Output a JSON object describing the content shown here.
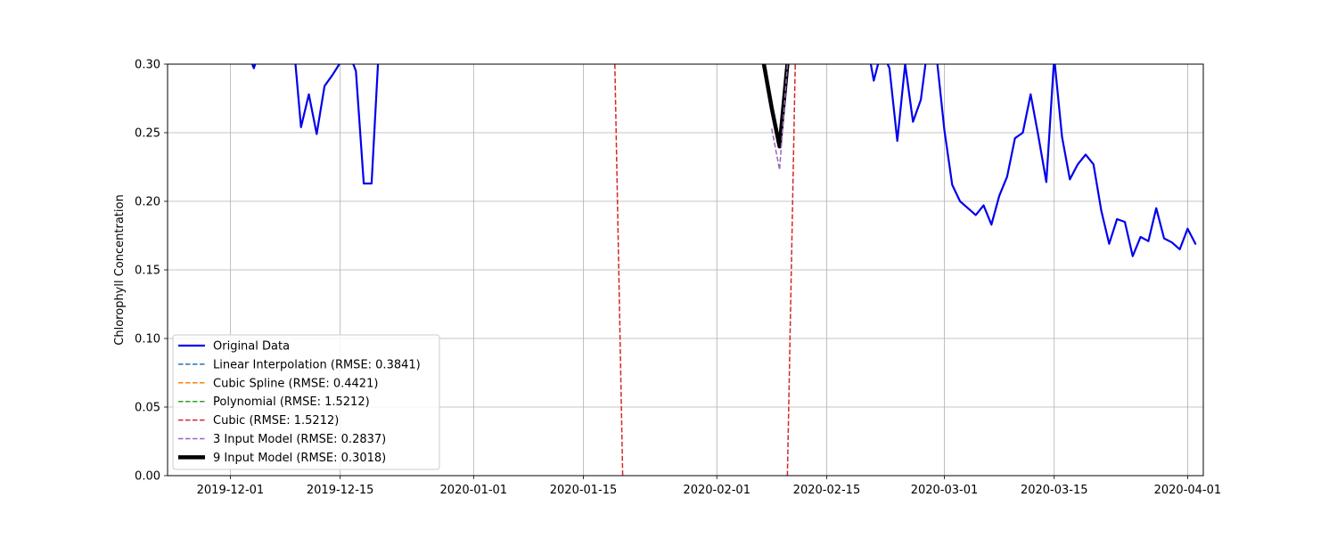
{
  "chart_data": {
    "type": "line",
    "title": "",
    "xlabel": "",
    "ylabel": "Chlorophyll Concentration",
    "x_is_date": true,
    "xlim": [
      "2019-11-23",
      "2020-04-03"
    ],
    "ylim": [
      0.0,
      0.3
    ],
    "x_ticks": [
      "2019-12-01",
      "2019-12-15",
      "2020-01-01",
      "2020-01-15",
      "2020-02-01",
      "2020-02-15",
      "2020-03-01",
      "2020-03-15",
      "2020-04-01"
    ],
    "y_ticks": [
      0.0,
      0.05,
      0.1,
      0.15,
      0.2,
      0.25,
      0.3
    ],
    "y_tick_labels": [
      "0.00",
      "0.05",
      "0.10",
      "0.15",
      "0.20",
      "0.25",
      "0.30"
    ],
    "grid": true,
    "legend_position": "lower-left",
    "series": [
      {
        "name": "Original Data",
        "color": "#0000ee",
        "style": "solid",
        "width": 2.2,
        "segments": [
          [
            [
              "2019-12-03",
              0.312
            ],
            [
              "2019-12-04",
              0.297
            ],
            [
              "2019-12-05",
              0.315
            ]
          ],
          [
            [
              "2019-12-09",
              0.32
            ],
            [
              "2019-12-10",
              0.254
            ],
            [
              "2019-12-11",
              0.278
            ],
            [
              "2019-12-12",
              0.249
            ],
            [
              "2019-12-13",
              0.284
            ],
            [
              "2019-12-14",
              0.292
            ],
            [
              "2019-12-15",
              0.301
            ],
            [
              "2019-12-16",
              0.31
            ],
            [
              "2019-12-17",
              0.295
            ],
            [
              "2019-12-18",
              0.213
            ],
            [
              "2019-12-19",
              0.213
            ],
            [
              "2019-12-20",
              0.32
            ]
          ],
          [
            [
              "2020-02-20",
              0.32
            ],
            [
              "2020-02-21",
              0.288
            ],
            [
              "2020-02-22",
              0.31
            ],
            [
              "2020-02-23",
              0.297
            ],
            [
              "2020-02-24",
              0.244
            ],
            [
              "2020-02-25",
              0.3
            ],
            [
              "2020-02-26",
              0.258
            ],
            [
              "2020-02-27",
              0.274
            ],
            [
              "2020-02-28",
              0.318
            ],
            [
              "2020-02-29",
              0.306
            ],
            [
              "2020-03-01",
              0.252
            ],
            [
              "2020-03-02",
              0.212
            ],
            [
              "2020-03-03",
              0.2
            ],
            [
              "2020-03-04",
              0.195
            ],
            [
              "2020-03-05",
              0.19
            ],
            [
              "2020-03-06",
              0.197
            ],
            [
              "2020-03-07",
              0.183
            ],
            [
              "2020-03-08",
              0.204
            ],
            [
              "2020-03-09",
              0.218
            ],
            [
              "2020-03-10",
              0.246
            ],
            [
              "2020-03-11",
              0.25
            ],
            [
              "2020-03-12",
              0.278
            ],
            [
              "2020-03-13",
              0.247
            ],
            [
              "2020-03-14",
              0.214
            ],
            [
              "2020-03-15",
              0.305
            ],
            [
              "2020-03-16",
              0.247
            ],
            [
              "2020-03-17",
              0.216
            ],
            [
              "2020-03-18",
              0.227
            ],
            [
              "2020-03-19",
              0.234
            ],
            [
              "2020-03-20",
              0.227
            ],
            [
              "2020-03-21",
              0.193
            ],
            [
              "2020-03-22",
              0.169
            ],
            [
              "2020-03-23",
              0.187
            ],
            [
              "2020-03-24",
              0.185
            ],
            [
              "2020-03-25",
              0.16
            ],
            [
              "2020-03-26",
              0.174
            ],
            [
              "2020-03-27",
              0.171
            ],
            [
              "2020-03-28",
              0.195
            ],
            [
              "2020-03-29",
              0.173
            ],
            [
              "2020-03-30",
              0.17
            ],
            [
              "2020-03-31",
              0.165
            ],
            [
              "2020-04-01",
              0.18
            ],
            [
              "2020-04-02",
              0.169
            ]
          ]
        ]
      },
      {
        "name": "Linear Interpolation (RMSE: 0.3841)",
        "color": "#1f77b4",
        "style": "dashed",
        "width": 1.5,
        "segments": []
      },
      {
        "name": "Cubic Spline (RMSE: 0.4421)",
        "color": "#ff7f0e",
        "style": "dashed",
        "width": 1.5,
        "segments": []
      },
      {
        "name": "Polynomial (RMSE: 1.5212)",
        "color": "#2ca02c",
        "style": "dashed",
        "width": 1.5,
        "segments": []
      },
      {
        "name": "Cubic (RMSE: 1.5212)",
        "color": "#d62728",
        "style": "dashed",
        "width": 1.5,
        "segments": [
          [
            [
              "2020-01-19",
              0.3
            ],
            [
              "2020-01-20",
              0.0
            ]
          ],
          [
            [
              "2020-02-10",
              0.0
            ],
            [
              "2020-02-11",
              0.3
            ]
          ]
        ]
      },
      {
        "name": "3 Input Model (RMSE: 0.2837)",
        "color": "#9467bd",
        "style": "dashed",
        "width": 1.5,
        "segments": [
          [
            [
              "2020-02-08",
              0.253
            ],
            [
              "2020-02-09",
              0.223
            ],
            [
              "2020-02-10",
              0.3
            ]
          ]
        ]
      },
      {
        "name": "9 Input Model (RMSE: 0.3018)",
        "color": "#000000",
        "style": "solid",
        "width": 4.5,
        "segments": [
          [
            [
              "2020-02-07",
              0.3
            ],
            [
              "2020-02-08",
              0.268
            ],
            [
              "2020-02-09",
              0.24
            ],
            [
              "2020-02-10",
              0.3
            ]
          ]
        ]
      }
    ]
  }
}
